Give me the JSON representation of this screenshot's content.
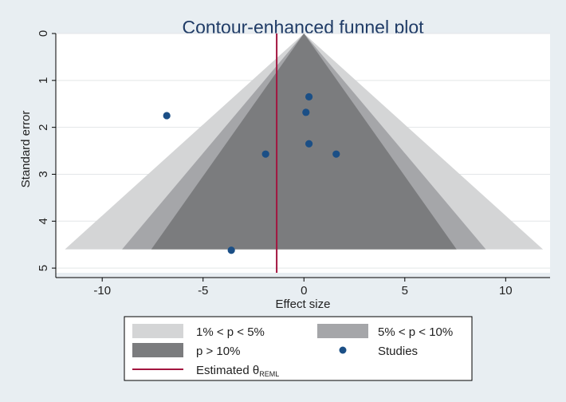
{
  "chart_data": {
    "type": "scatter",
    "title": "Contour-enhanced funnel plot",
    "xlabel": "Effect size",
    "ylabel": "Standard error",
    "xlim": [
      -12.3,
      12.2
    ],
    "ylim": [
      0,
      5.1
    ],
    "y_reversed": true,
    "x_ticks": [
      -10,
      -5,
      0,
      5,
      10
    ],
    "y_ticks": [
      0,
      1,
      2,
      3,
      4,
      5
    ],
    "x_tick_labels": [
      "-10",
      "-5",
      "0",
      "5",
      "10"
    ],
    "y_tick_labels": [
      "0",
      "1",
      "2",
      "3",
      "4",
      "5"
    ],
    "grid": "horizontal",
    "funnel_max_se": 4.6,
    "contours": [
      {
        "name": "1% < p < 5%",
        "z": 2.576,
        "color": "#d4d5d6"
      },
      {
        "name": "5% < p < 10%",
        "z": 1.96,
        "color": "#a5a6a9"
      },
      {
        "name": "p > 10%",
        "z": 1.645,
        "color": "#7b7c7e"
      }
    ],
    "studies": {
      "name": "Studies",
      "color": "#1b4f86",
      "points": [
        {
          "x": -6.8,
          "y": 1.75
        },
        {
          "x": 0.25,
          "y": 1.35
        },
        {
          "x": 0.1,
          "y": 1.68
        },
        {
          "x": 0.25,
          "y": 2.35
        },
        {
          "x": -1.9,
          "y": 2.57
        },
        {
          "x": 1.6,
          "y": 2.57
        },
        {
          "x": -3.6,
          "y": 4.62
        }
      ]
    },
    "estimate": {
      "name_prefix": "Estimated θ",
      "name_sub": "REML",
      "x": -1.35,
      "color": "#a3153f"
    },
    "legend": {
      "position": "bottom",
      "items": [
        {
          "label": "1% < p < 5%",
          "kind": "box",
          "color": "#d4d5d6"
        },
        {
          "label": "5% < p < 10%",
          "kind": "box",
          "color": "#a5a6a9"
        },
        {
          "label": "p > 10%",
          "kind": "box",
          "color": "#7b7c7e"
        },
        {
          "label": "Studies",
          "kind": "dot",
          "color": "#1b4f86"
        },
        {
          "label": "Estimated θ",
          "label_sub": "REML",
          "kind": "line",
          "color": "#a3153f"
        }
      ]
    }
  }
}
